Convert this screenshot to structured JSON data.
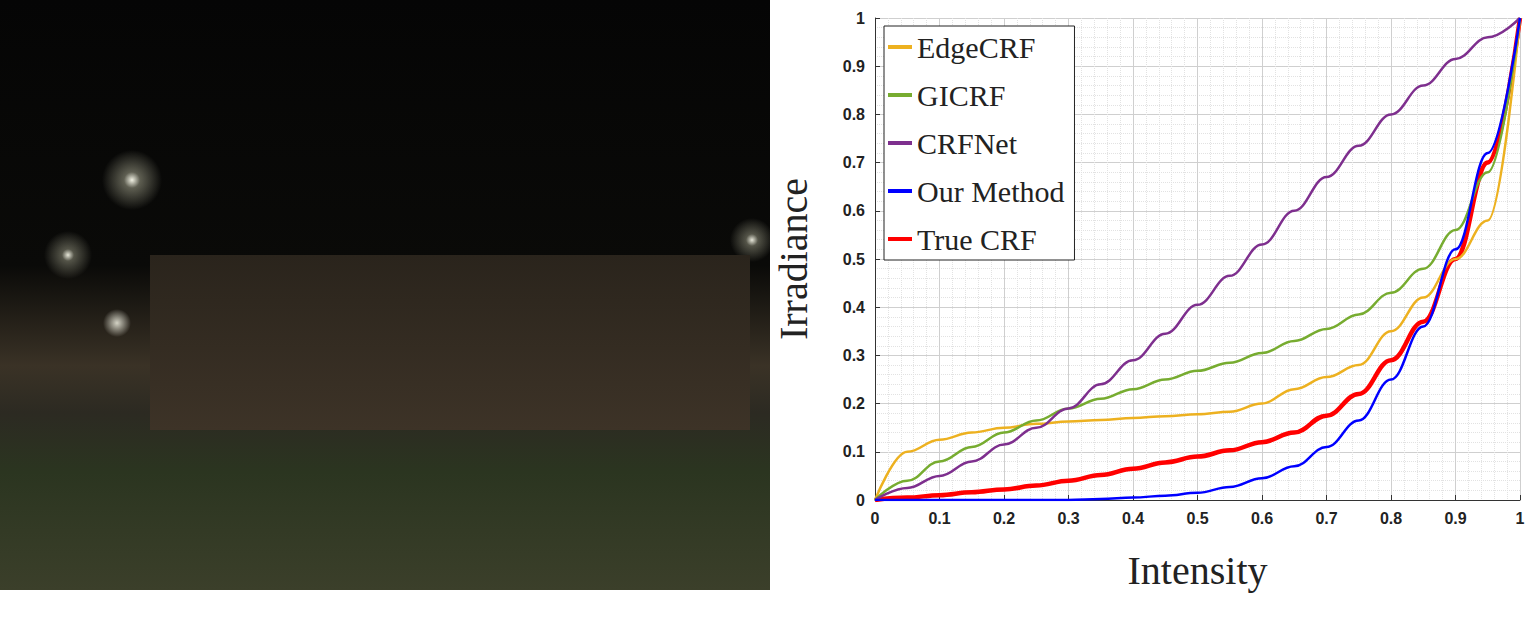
{
  "chart_data": {
    "type": "line",
    "x_label": "Intensity",
    "y_label": "Irradiance",
    "xlim": [
      0,
      1
    ],
    "ylim": [
      0,
      1
    ],
    "xticks": [
      0,
      0.1,
      0.2,
      0.3,
      0.4,
      0.5,
      0.6,
      0.7,
      0.8,
      0.9,
      1
    ],
    "yticks": [
      0,
      0.1,
      0.2,
      0.3,
      0.4,
      0.5,
      0.6,
      0.7,
      0.8,
      0.9,
      1
    ],
    "grid": true,
    "legend": "upper left",
    "marker": "none",
    "x": [
      0,
      0.05,
      0.1,
      0.15,
      0.2,
      0.25,
      0.3,
      0.35,
      0.4,
      0.45,
      0.5,
      0.55,
      0.6,
      0.65,
      0.7,
      0.75,
      0.8,
      0.85,
      0.9,
      0.95,
      1
    ],
    "series": [
      {
        "name": "EdgeCRF",
        "color": "#edb120",
        "values": [
          0,
          0.1,
          0.125,
          0.14,
          0.15,
          0.158,
          0.163,
          0.166,
          0.17,
          0.174,
          0.178,
          0.183,
          0.2,
          0.23,
          0.255,
          0.28,
          0.35,
          0.42,
          0.5,
          0.58,
          1
        ]
      },
      {
        "name": "GICRF",
        "color": "#77ac30",
        "values": [
          0,
          0.04,
          0.08,
          0.11,
          0.14,
          0.165,
          0.19,
          0.21,
          0.23,
          0.25,
          0.268,
          0.285,
          0.305,
          0.33,
          0.355,
          0.385,
          0.43,
          0.48,
          0.56,
          0.68,
          1
        ]
      },
      {
        "name": "CRFNet",
        "color": "#7e2f8e",
        "values": [
          0,
          0.025,
          0.05,
          0.08,
          0.115,
          0.15,
          0.19,
          0.24,
          0.29,
          0.345,
          0.405,
          0.465,
          0.53,
          0.6,
          0.67,
          0.735,
          0.8,
          0.86,
          0.915,
          0.96,
          1
        ]
      },
      {
        "name": "Our Method",
        "color": "#0000ff",
        "values": [
          0,
          0,
          0,
          0,
          0,
          0,
          0,
          0.002,
          0.005,
          0.009,
          0.015,
          0.027,
          0.045,
          0.07,
          0.11,
          0.165,
          0.25,
          0.36,
          0.52,
          0.72,
          1
        ]
      },
      {
        "name": "True CRF",
        "color": "#ff0000",
        "values": [
          0,
          0.005,
          0.01,
          0.016,
          0.022,
          0.03,
          0.04,
          0.052,
          0.065,
          0.078,
          0.09,
          0.103,
          0.12,
          0.14,
          0.175,
          0.22,
          0.29,
          0.37,
          0.5,
          0.7,
          1
        ]
      }
    ]
  }
}
